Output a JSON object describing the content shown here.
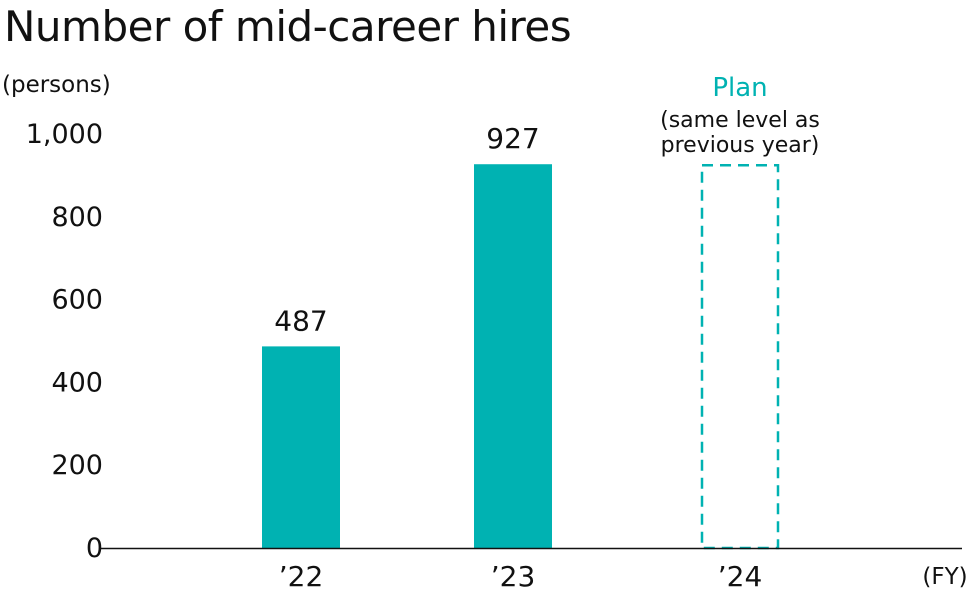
{
  "chart_data": {
    "type": "bar",
    "title": "Number of mid-career hires",
    "ylabel": "(persons)",
    "xlabel": "(FY)",
    "categories": [
      "’22",
      "’23",
      "’24"
    ],
    "values": [
      487,
      927,
      927
    ],
    "value_labels": [
      "487",
      "927",
      ""
    ],
    "planned": [
      false,
      false,
      true
    ],
    "yticks": [
      0,
      200,
      400,
      600,
      800,
      1000
    ],
    "ytick_labels": [
      "0",
      "200",
      "400",
      "600",
      "800",
      "1,000"
    ],
    "ylim": [
      0,
      1000
    ],
    "grid": false,
    "annotation": {
      "title": "Plan",
      "lines": [
        "(same level as",
        "previous year)"
      ]
    },
    "colors": {
      "bar": "#00b2b2",
      "axis": "#111111",
      "text": "#111111"
    }
  }
}
